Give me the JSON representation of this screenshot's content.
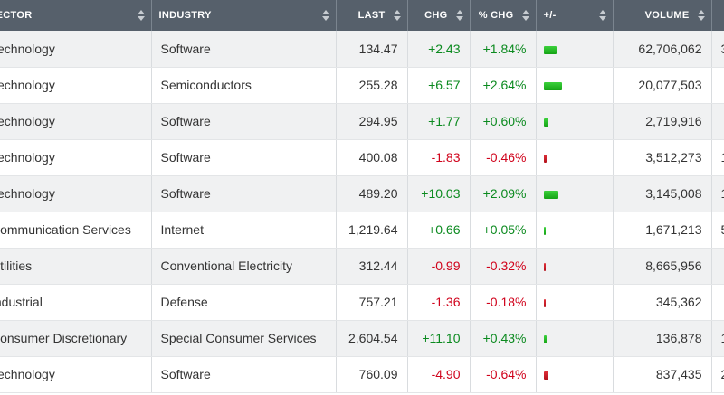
{
  "columns": [
    {
      "label": "SECTOR",
      "key": "sector"
    },
    {
      "label": "INDUSTRY",
      "key": "industry"
    },
    {
      "label": "LAST",
      "key": "last"
    },
    {
      "label": "CHG",
      "key": "chg"
    },
    {
      "label": "% CHG",
      "key": "pct"
    },
    {
      "label": "+/-",
      "key": "bar"
    },
    {
      "label": "VOLUME",
      "key": "volume"
    },
    {
      "label": "",
      "key": "extra"
    }
  ],
  "rows": [
    {
      "sector": "Technology",
      "industry": "Software",
      "last": "134.47",
      "chg": "+2.43",
      "pct": "+1.84%",
      "pct_value": 1.84,
      "volume": "62,706,062",
      "extra": "3"
    },
    {
      "sector": "Technology",
      "industry": "Semiconductors",
      "last": "255.28",
      "chg": "+6.57",
      "pct": "+2.64%",
      "pct_value": 2.64,
      "volume": "20,077,503",
      "extra": ""
    },
    {
      "sector": "Technology",
      "industry": "Software",
      "last": "294.95",
      "chg": "+1.77",
      "pct": "+0.60%",
      "pct_value": 0.6,
      "volume": "2,719,916",
      "extra": ""
    },
    {
      "sector": "Technology",
      "industry": "Software",
      "last": "400.08",
      "chg": "-1.83",
      "pct": "-0.46%",
      "pct_value": -0.46,
      "volume": "3,512,273",
      "extra": "1"
    },
    {
      "sector": "Technology",
      "industry": "Software",
      "last": "489.20",
      "chg": "+10.03",
      "pct": "+2.09%",
      "pct_value": 2.09,
      "volume": "3,145,008",
      "extra": "1"
    },
    {
      "sector": "Communication Services",
      "industry": "Internet",
      "last": "1,219.64",
      "chg": "+0.66",
      "pct": "+0.05%",
      "pct_value": 0.05,
      "volume": "1,671,213",
      "extra": "5"
    },
    {
      "sector": "Utilities",
      "industry": "Conventional Electricity",
      "last": "312.44",
      "chg": "-0.99",
      "pct": "-0.32%",
      "pct_value": -0.32,
      "volume": "8,665,956",
      "extra": ""
    },
    {
      "sector": "Industrial",
      "industry": "Defense",
      "last": "757.21",
      "chg": "-1.36",
      "pct": "-0.18%",
      "pct_value": -0.18,
      "volume": "345,362",
      "extra": ""
    },
    {
      "sector": "Consumer Discretionary",
      "industry": "Special Consumer Services",
      "last": "2,604.54",
      "chg": "+11.10",
      "pct": "+0.43%",
      "pct_value": 0.43,
      "volume": "136,878",
      "extra": "1"
    },
    {
      "sector": "Technology",
      "industry": "Software",
      "last": "760.09",
      "chg": "-4.90",
      "pct": "-0.64%",
      "pct_value": -0.64,
      "volume": "837,435",
      "extra": "2"
    }
  ],
  "colors": {
    "header_bg": "#56606b",
    "positive": "#0b8a1f",
    "negative": "#d0021b",
    "row_alt": "#f0f1f2"
  }
}
